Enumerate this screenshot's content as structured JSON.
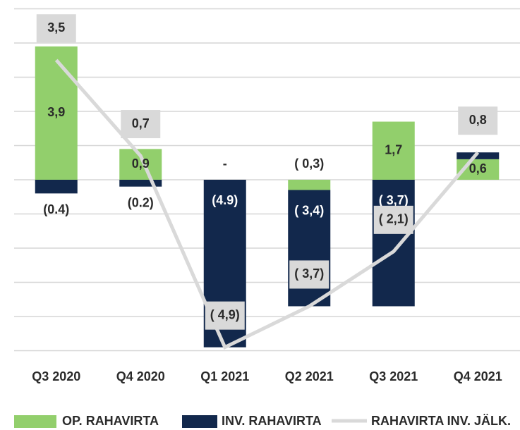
{
  "chart_data": {
    "type": "bar",
    "categories": [
      "Q3 2020",
      "Q4 2020",
      "Q1 2021",
      "Q2 2021",
      "Q3 2021",
      "Q4 2021"
    ],
    "series": [
      {
        "name": "OP. RAHAVIRTA",
        "color": "#92cf6c",
        "type": "bar",
        "values": [
          3.9,
          0.9,
          0,
          -0.3,
          1.7,
          0.6
        ],
        "value_labels": [
          "3,9",
          "0,9",
          "-",
          "( 0,3)",
          "1,7",
          "0,6"
        ]
      },
      {
        "name": "INV. RAHAVIRTA",
        "color": "#12284c",
        "type": "bar",
        "values": [
          -0.4,
          -0.2,
          -4.9,
          -3.4,
          -3.7,
          0.2
        ],
        "value_labels": [
          "(0.4)",
          "(0.2)",
          "(4.9)",
          "( 3,4)",
          "( 3,7)",
          null
        ]
      },
      {
        "name": "RAHAVIRTA INV. JÄLK.",
        "color": "#d9d9d9",
        "type": "line",
        "values": [
          3.5,
          0.7,
          -4.9,
          -3.7,
          -2.1,
          0.8
        ],
        "value_labels": [
          "3,5",
          "0,7",
          "( 4,9)",
          "( 3,7)",
          "( 2,1)",
          "0,8"
        ]
      }
    ],
    "stacked": true,
    "ylim": [
      -5,
      5
    ],
    "yticks": [
      -5,
      -4,
      -3,
      -2,
      -1,
      0,
      1,
      2,
      3,
      4,
      5
    ],
    "grid": true
  }
}
